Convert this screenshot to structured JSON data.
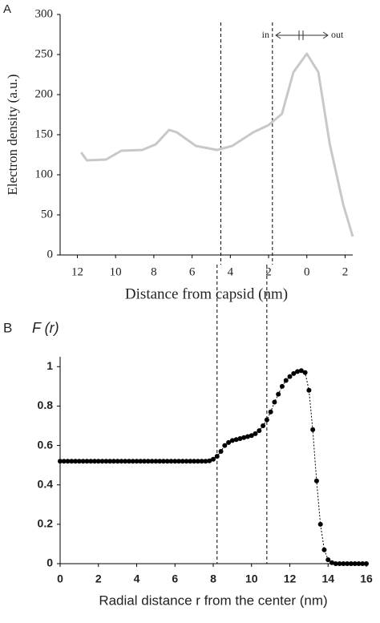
{
  "chart_data": [
    {
      "type": "line",
      "panel": "A",
      "x_label": "Distance from capsid (nm)",
      "y_label": "Electron density (a.u.)",
      "annotations": [
        "in",
        "out"
      ],
      "xlim": [
        12.9,
        -2.4
      ],
      "ylim": [
        0,
        300
      ],
      "xticks": [
        12,
        10,
        8,
        6,
        4,
        2,
        0,
        {
          "value": -2,
          "label": "2"
        }
      ],
      "yticks": [
        0,
        50,
        100,
        150,
        200,
        250,
        300
      ],
      "vlines": [
        4.5,
        1.8
      ],
      "color": "#c8c8c8",
      "x": [
        11.8,
        11.5,
        10.5,
        9.7,
        8.6,
        7.9,
        7.2,
        6.8,
        5.8,
        4.7,
        3.9,
        2.8,
        2.0,
        1.3,
        0.7,
        0,
        -0.6,
        -1.2,
        -1.9,
        -2.4
      ],
      "values": [
        128,
        118,
        119,
        130,
        131,
        138,
        156,
        153,
        136,
        131,
        136,
        153,
        162,
        176,
        228,
        251,
        228,
        138,
        63,
        23
      ]
    },
    {
      "type": "scatter",
      "panel": "B",
      "y_label": "F (r)",
      "x_label": "Radial distance r  from the center (nm)",
      "xlim": [
        0,
        16
      ],
      "ylim": [
        0,
        1.05
      ],
      "xticks": [
        0,
        2,
        4,
        6,
        8,
        10,
        12,
        14,
        16
      ],
      "yticks": [
        0,
        0.2,
        0.4,
        0.6,
        0.8,
        1
      ],
      "vlines": [
        8.2,
        10.8
      ],
      "color": "#000000",
      "x": [
        0,
        0.2,
        0.4,
        0.6,
        0.8,
        1.0,
        1.2,
        1.4,
        1.6,
        1.8,
        2.0,
        2.2,
        2.4,
        2.6,
        2.8,
        3.0,
        3.2,
        3.4,
        3.6,
        3.8,
        4.0,
        4.2,
        4.4,
        4.6,
        4.8,
        5.0,
        5.2,
        5.4,
        5.6,
        5.8,
        6.0,
        6.2,
        6.4,
        6.6,
        6.8,
        7.0,
        7.2,
        7.4,
        7.6,
        7.8,
        8.0,
        8.2,
        8.4,
        8.6,
        8.8,
        9.0,
        9.2,
        9.4,
        9.6,
        9.8,
        10.0,
        10.2,
        10.4,
        10.6,
        10.8,
        11.0,
        11.2,
        11.4,
        11.6,
        11.8,
        12.0,
        12.2,
        12.4,
        12.6,
        12.8,
        13.0,
        13.2,
        13.4,
        13.6,
        13.8,
        14.0,
        14.2,
        14.4,
        14.6,
        14.8,
        15.0,
        15.2,
        15.4,
        15.6,
        15.8,
        16.0
      ],
      "values": [
        0.52,
        0.52,
        0.52,
        0.52,
        0.52,
        0.52,
        0.52,
        0.52,
        0.52,
        0.52,
        0.52,
        0.52,
        0.52,
        0.52,
        0.52,
        0.52,
        0.52,
        0.52,
        0.52,
        0.52,
        0.52,
        0.52,
        0.52,
        0.52,
        0.52,
        0.52,
        0.52,
        0.52,
        0.52,
        0.52,
        0.52,
        0.52,
        0.52,
        0.52,
        0.52,
        0.52,
        0.52,
        0.52,
        0.52,
        0.522,
        0.53,
        0.545,
        0.57,
        0.6,
        0.615,
        0.625,
        0.63,
        0.635,
        0.64,
        0.645,
        0.65,
        0.66,
        0.675,
        0.7,
        0.73,
        0.77,
        0.82,
        0.86,
        0.9,
        0.93,
        0.95,
        0.965,
        0.975,
        0.98,
        0.97,
        0.88,
        0.68,
        0.42,
        0.2,
        0.07,
        0.02,
        0.005,
        0,
        0,
        0,
        0,
        0,
        0,
        0,
        0,
        0
      ]
    }
  ]
}
